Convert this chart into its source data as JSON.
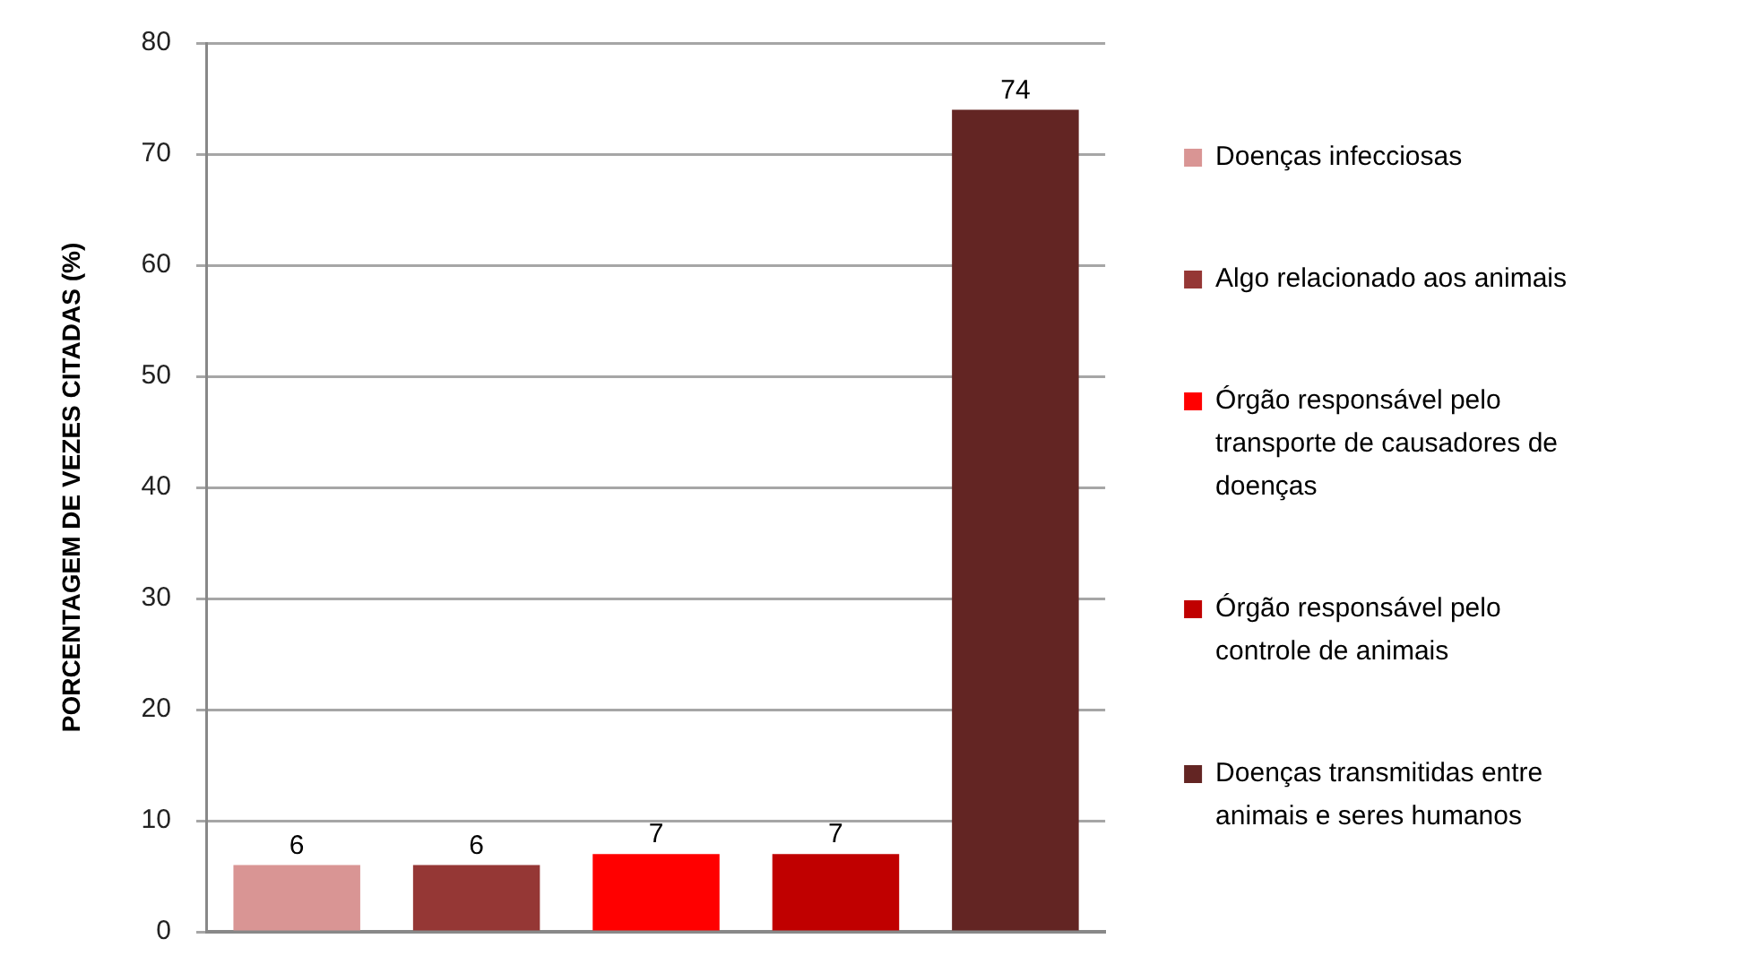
{
  "chart_data": {
    "type": "bar",
    "categories": [
      null,
      null,
      null,
      null,
      null
    ],
    "series": [
      {
        "name": "Doenças infecciosas",
        "color": "#d99594",
        "values": [
          6,
          null,
          null,
          null,
          null
        ]
      },
      {
        "name": "Algo relacionado aos animais",
        "color": "#953735",
        "values": [
          null,
          6,
          null,
          null,
          null
        ]
      },
      {
        "name": "Órgão responsável pelo transporte de causadores de doenças",
        "color": "#ff0000",
        "values": [
          null,
          null,
          7,
          null,
          null
        ]
      },
      {
        "name": "Órgão responsável pelo controle de animais",
        "color": "#c00000",
        "values": [
          null,
          null,
          null,
          7,
          null
        ]
      },
      {
        "name": "Doenças transmitidas entre animais e seres humanos",
        "color": "#632523",
        "values": [
          null,
          null,
          null,
          null,
          74
        ]
      }
    ],
    "ylabel": "PORCENTAGEM DE VEZES CITADAS (%)",
    "ylim": [
      0,
      80
    ],
    "yticks": [
      0,
      10,
      20,
      30,
      40,
      50,
      60,
      70,
      80
    ],
    "grid": "y",
    "legend": "right",
    "tick_labels": "y",
    "data_labels": true
  }
}
